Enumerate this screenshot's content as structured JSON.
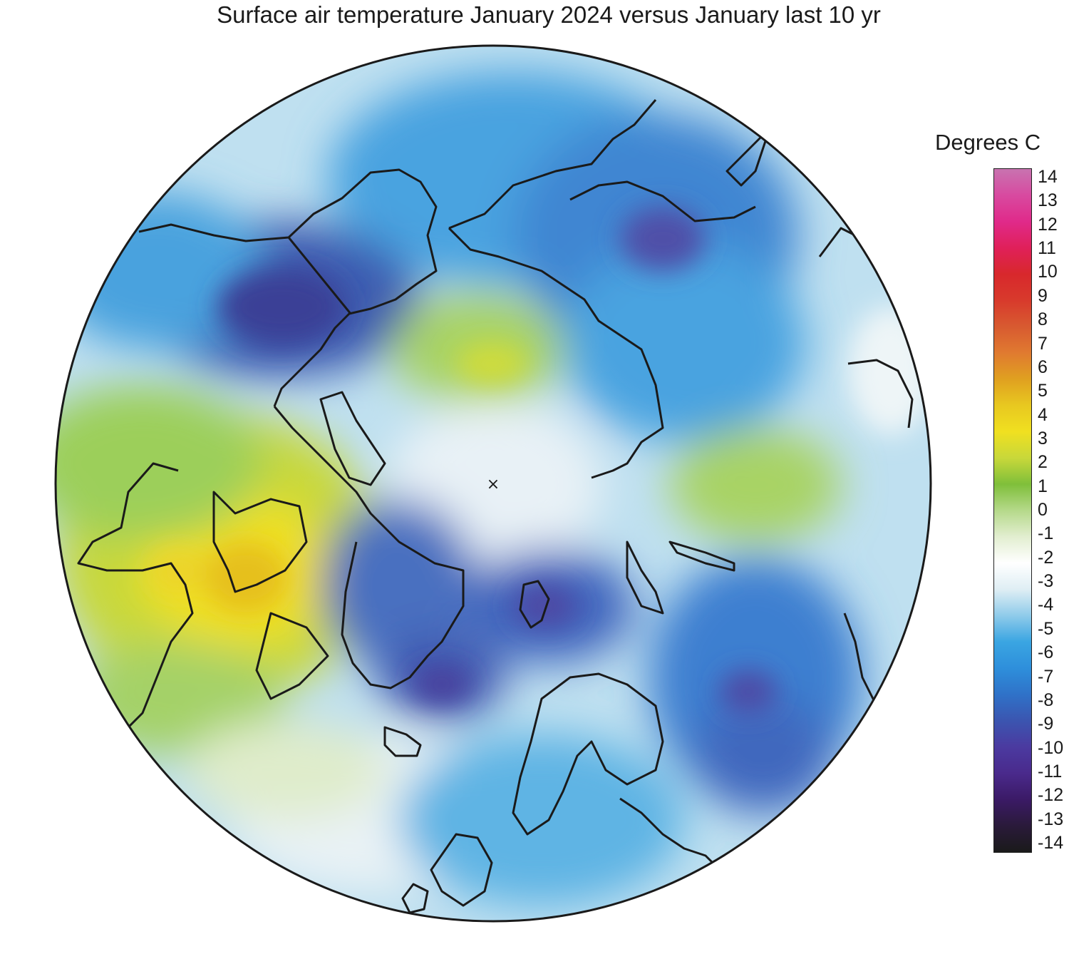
{
  "title": "Surface air temperature January 2024 versus January last 10 yr",
  "legend": {
    "title": "Degrees C",
    "ticks": [
      "14",
      "13",
      "12",
      "11",
      "10",
      "9",
      "8",
      "7",
      "6",
      "5",
      "4",
      "3",
      "2",
      "1",
      "0",
      "-1",
      "-2",
      "-3",
      "-4",
      "-5",
      "-6",
      "-7",
      "-8",
      "-9",
      "-10",
      "-11",
      "-12",
      "-13",
      "-14"
    ],
    "range": [
      -14,
      14
    ],
    "colors": [
      "#1a1a1a",
      "#2a1a3a",
      "#3b1a66",
      "#4a2a8c",
      "#4b3aa0",
      "#3b55b0",
      "#2f72c8",
      "#2e8fdb",
      "#3aa5e2",
      "#8fcbea",
      "#dfeef4",
      "#ffffff",
      "#e2eed0",
      "#b5d98a",
      "#7fbf3a",
      "#c8d83a",
      "#f0e020",
      "#e8c820",
      "#e0a020",
      "#e07a30",
      "#d85a30",
      "#d83a2c",
      "#d8282c",
      "#e0205a",
      "#e02a8a",
      "#d84aa0",
      "#c873b0"
    ]
  },
  "map": {
    "projection": "north polar stereographic",
    "center_marker": "×"
  }
}
